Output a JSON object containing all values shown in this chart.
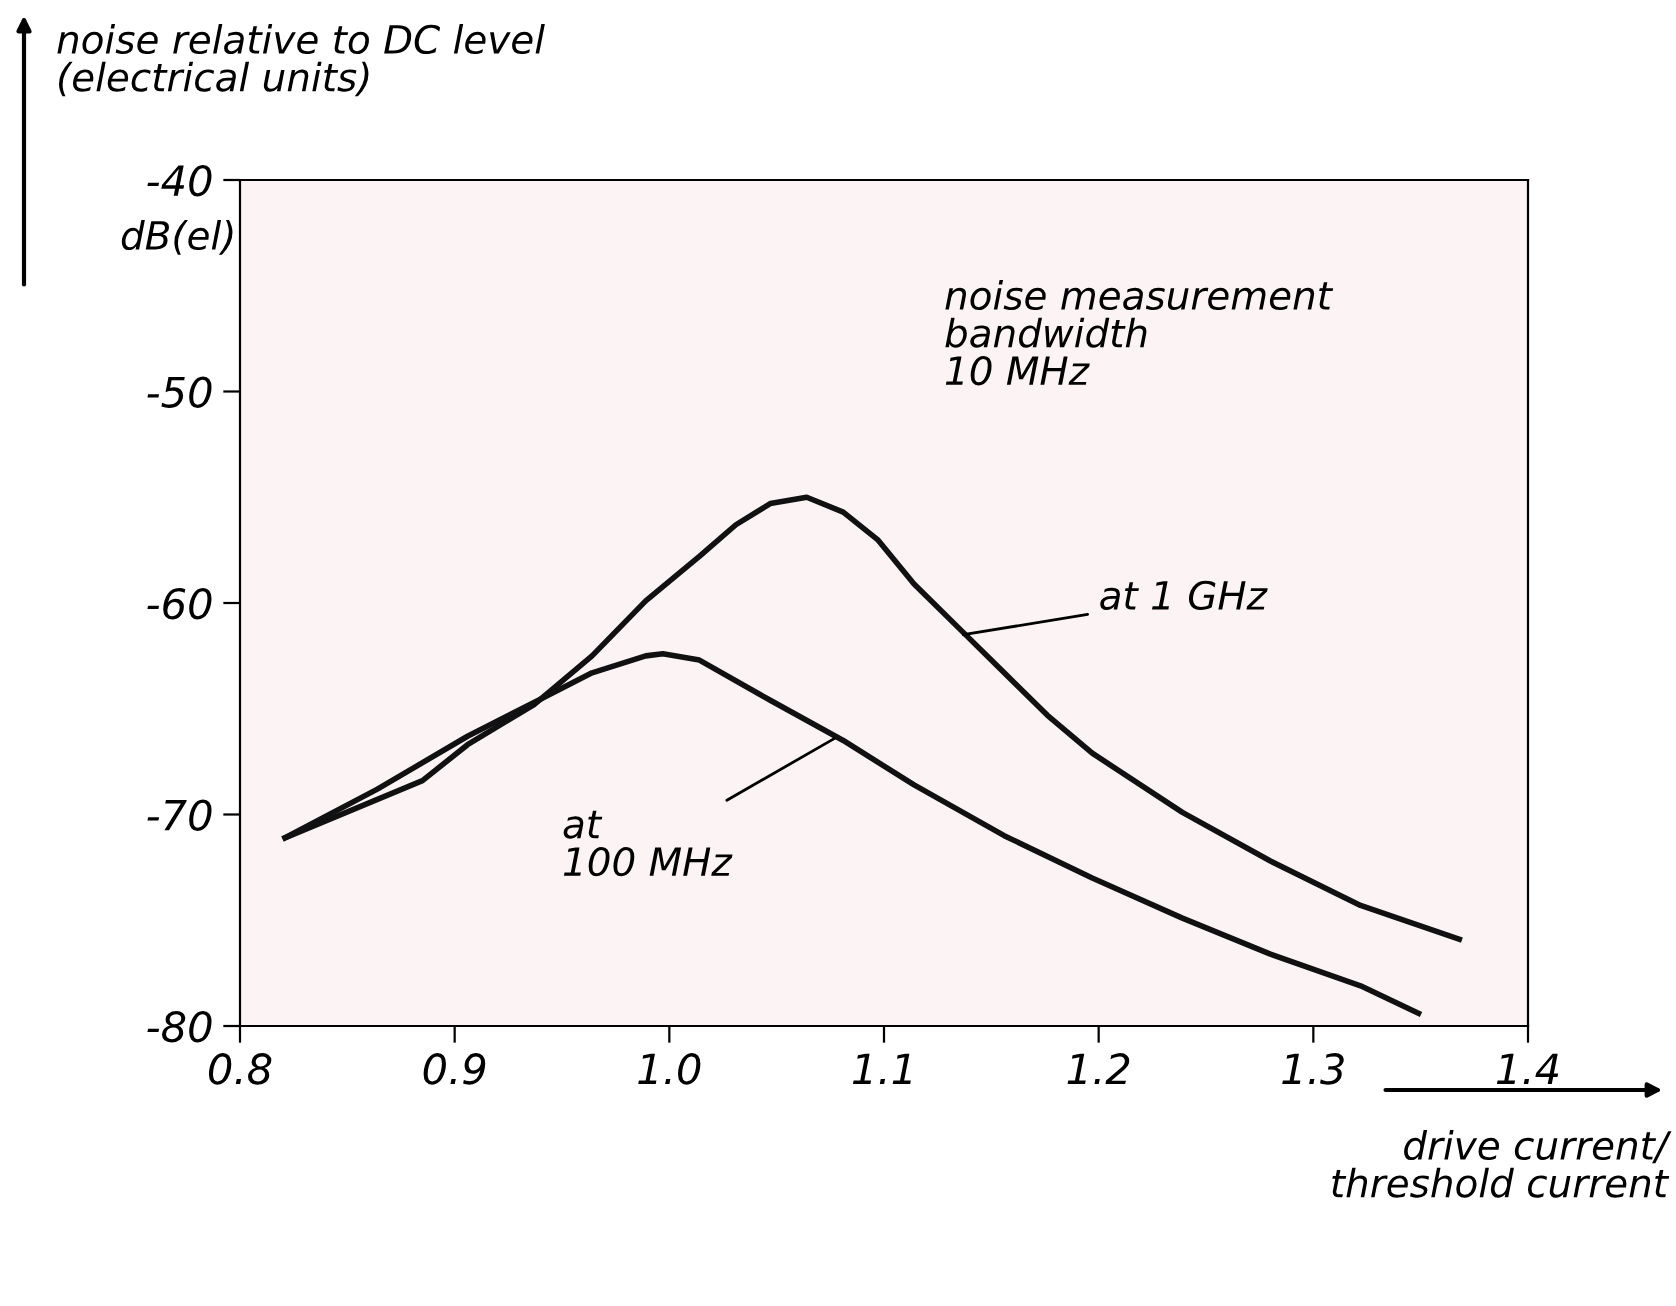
{
  "chart_data": {
    "type": "line",
    "xlabel": "drive current/\nthreshold current",
    "ylabel": "noise relative to DC level\n(electrical units)",
    "xlim": [
      0.8,
      1.4
    ],
    "ylim": [
      -80,
      -40
    ],
    "xticks": [
      {
        "value": 0.8,
        "label": "0.8"
      },
      {
        "value": 0.9,
        "label": "0.9"
      },
      {
        "value": 1.0,
        "label": "1.0"
      },
      {
        "value": 1.1,
        "label": "1.1"
      },
      {
        "value": 1.2,
        "label": "1.2"
      },
      {
        "value": 1.3,
        "label": "1.3"
      },
      {
        "value": 1.4,
        "label": "1.4"
      }
    ],
    "yticks": [
      -80,
      -70,
      -60,
      -50,
      -40
    ],
    "grid": false,
    "legend": false,
    "marker": "none",
    "line_style": "solid",
    "series": [
      {
        "color": "#111111",
        "x": [
          0.821,
          0.885,
          0.906,
          0.937,
          0.964,
          0.989,
          1.014,
          1.031,
          1.047,
          1.064,
          1.081,
          1.097,
          1.114,
          1.135,
          1.156,
          1.176,
          1.197,
          1.239,
          1.28,
          1.322,
          1.368
        ],
        "values": [
          -71.1,
          -68.4,
          -66.7,
          -64.8,
          -62.5,
          -59.9,
          -57.8,
          -56.3,
          -55.3,
          -55.0,
          -55.7,
          -57.0,
          -59.1,
          -61.2,
          -63.3,
          -65.3,
          -67.1,
          -69.9,
          -72.2,
          -74.3,
          -75.9
        ]
      },
      {
        "color": "#111111",
        "x": [
          0.821,
          0.864,
          0.906,
          0.939,
          0.964,
          0.989,
          0.997,
          1.014,
          1.047,
          1.081,
          1.114,
          1.156,
          1.197,
          1.239,
          1.28,
          1.322,
          1.349
        ],
        "values": [
          -71.1,
          -68.8,
          -66.3,
          -64.6,
          -63.3,
          -62.5,
          -62.4,
          -62.7,
          -64.6,
          -66.5,
          -68.6,
          -71.0,
          -73.0,
          -74.9,
          -76.6,
          -78.1,
          -79.4
        ]
      }
    ],
    "annotations": [
      "dB(el)",
      "noise measurement\nbandwidth\n10 MHz",
      {
        "text": "at 1 GHz",
        "x": 1.137,
        "y": -61.5
      },
      {
        "text": "at\n100 MHz",
        "x": 1.077,
        "y": -66.4
      }
    ]
  }
}
